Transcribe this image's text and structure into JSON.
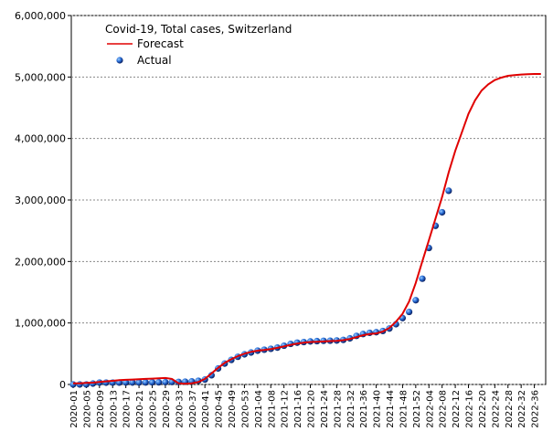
{
  "chart_data": {
    "type": "line",
    "title": "Covid-19, Total cases, Switzerland",
    "categories": [
      "2020-01",
      null,
      "2020-05",
      null,
      "2020-09",
      null,
      "2020-13",
      null,
      "2020-17",
      null,
      "2020-21",
      null,
      "2020-25",
      null,
      "2020-29",
      null,
      "2020-33",
      null,
      "2020-37",
      null,
      "2020-41",
      null,
      "2020-45",
      null,
      "2020-49",
      null,
      "2020-53",
      null,
      "2021-04",
      null,
      "2021-08",
      null,
      "2021-12",
      null,
      "2021-16",
      null,
      "2021-20",
      null,
      "2021-24",
      null,
      "2021-28",
      null,
      "2021-32",
      null,
      "2021-36",
      null,
      "2021-40",
      null,
      "2021-44",
      null,
      "2021-48",
      null,
      "2021-52",
      null,
      "2022-04",
      null,
      "2022-08",
      null,
      "2022-12",
      null,
      "2022-16",
      null,
      "2022-20",
      null,
      "2022-24",
      null,
      "2022-28",
      null,
      "2022-32",
      null,
      "2022-36",
      null
    ],
    "series": [
      {
        "name": "Forecast",
        "color": "#e00000",
        "marker": "line",
        "values": [
          20000,
          20000,
          25000,
          30000,
          40000,
          50000,
          60000,
          70000,
          75000,
          80000,
          85000,
          90000,
          95000,
          100000,
          105000,
          90000,
          20000,
          10000,
          20000,
          40000,
          90000,
          180000,
          270000,
          350000,
          410000,
          460000,
          500000,
          530000,
          550000,
          560000,
          575000,
          595000,
          620000,
          645000,
          665000,
          680000,
          690000,
          695000,
          700000,
          705000,
          710000,
          720000,
          740000,
          770000,
          800000,
          820000,
          830000,
          860000,
          920000,
          1020000,
          1150000,
          1350000,
          1650000,
          2000000,
          2350000,
          2700000,
          3050000,
          3450000,
          3800000,
          4100000,
          4400000,
          4620000,
          4780000,
          4880000,
          4950000,
          4990000,
          5020000,
          5030000,
          5040000,
          5045000,
          5050000,
          5050000
        ]
      },
      {
        "name": "Actual",
        "color": "#1a5fd0",
        "marker": "dot",
        "values": [
          0,
          0,
          1000,
          15000,
          30000,
          30000,
          31000,
          31000,
          31500,
          32000,
          32000,
          33000,
          34000,
          35000,
          37000,
          40000,
          42000,
          45000,
          50000,
          60000,
          80000,
          150000,
          260000,
          340000,
          400000,
          450000,
          490000,
          520000,
          550000,
          565000,
          580000,
          600000,
          630000,
          660000,
          680000,
          690000,
          700000,
          705000,
          710000,
          712000,
          715000,
          725000,
          750000,
          790000,
          820000,
          840000,
          850000,
          870000,
          910000,
          980000,
          1080000,
          1180000,
          1370000,
          1720000,
          2220000,
          2580000,
          2800000,
          3150000,
          null,
          null,
          null,
          null,
          null,
          null,
          null,
          null,
          null,
          null,
          null,
          null,
          null,
          null
        ]
      }
    ],
    "ylim": [
      0,
      6000000
    ],
    "yticks": [
      0,
      {
        "value": 1000000,
        "label": "1,000,000"
      },
      {
        "value": 2000000,
        "label": "2,000,000"
      },
      {
        "value": 3000000,
        "label": "3,000,000"
      },
      {
        "value": 4000000,
        "label": "4,000,000"
      },
      {
        "value": 5000000,
        "label": "5,000,000"
      },
      {
        "value": 6000000,
        "label": "6,000,000"
      }
    ],
    "grid": true,
    "legend": "top-left"
  }
}
